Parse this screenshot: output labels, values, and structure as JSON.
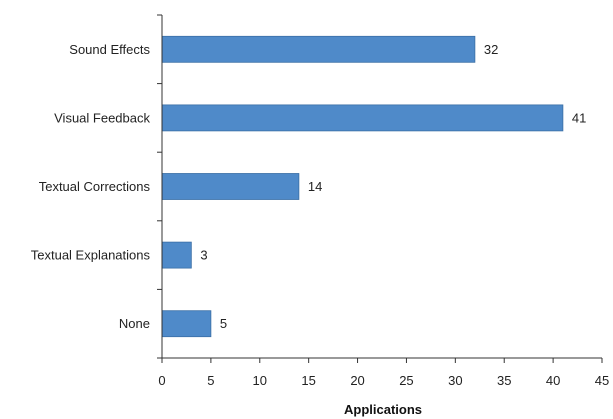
{
  "chart_data": {
    "type": "bar",
    "orientation": "horizontal",
    "categories": [
      "Sound Effects",
      "Visual Feedback",
      "Textual Corrections",
      "Textual Explanations",
      "None"
    ],
    "values": [
      32,
      41,
      14,
      3,
      5
    ],
    "xlabel": "Applications",
    "xlim": [
      0,
      45
    ],
    "xticks": [
      0,
      5,
      10,
      15,
      20,
      25,
      30,
      35,
      40,
      45
    ],
    "grid": false,
    "bar_color": "#4f8ac9",
    "bar_edge_color": "#3a6ea5"
  }
}
